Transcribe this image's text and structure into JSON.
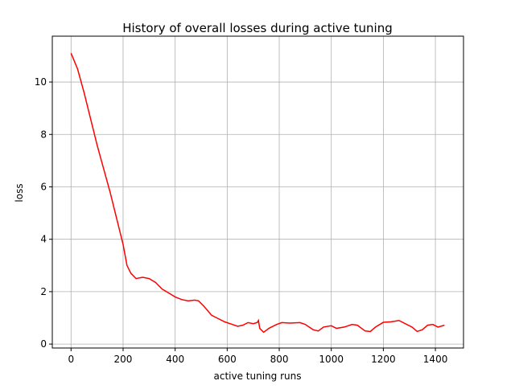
{
  "chart_data": {
    "type": "line",
    "title": "History of overall losses during active tuning",
    "x_label": "active tuning runs",
    "y_label": "loss",
    "x": [
      0,
      25,
      50,
      75,
      100,
      125,
      150,
      175,
      200,
      215,
      230,
      250,
      275,
      300,
      325,
      350,
      375,
      400,
      425,
      450,
      475,
      490,
      510,
      540,
      560,
      590,
      620,
      640,
      660,
      680,
      700,
      715,
      720,
      725,
      740,
      760,
      790,
      810,
      840,
      880,
      900,
      930,
      950,
      970,
      1000,
      1020,
      1050,
      1080,
      1100,
      1130,
      1150,
      1170,
      1200,
      1230,
      1260,
      1290,
      1310,
      1330,
      1350,
      1370,
      1390,
      1410,
      1435
    ],
    "series": [
      {
        "name": "loss",
        "color": "#ff0000",
        "values": [
          11.1,
          10.5,
          9.6,
          8.6,
          7.6,
          6.7,
          5.8,
          4.8,
          3.8,
          3.0,
          2.7,
          2.5,
          2.55,
          2.5,
          2.35,
          2.1,
          1.95,
          1.8,
          1.7,
          1.65,
          1.68,
          1.65,
          1.45,
          1.1,
          1.0,
          0.85,
          0.75,
          0.68,
          0.72,
          0.82,
          0.78,
          0.82,
          0.9,
          0.6,
          0.45,
          0.6,
          0.75,
          0.82,
          0.8,
          0.82,
          0.75,
          0.55,
          0.5,
          0.65,
          0.7,
          0.6,
          0.65,
          0.75,
          0.72,
          0.5,
          0.48,
          0.65,
          0.83,
          0.85,
          0.9,
          0.75,
          0.65,
          0.48,
          0.55,
          0.72,
          0.75,
          0.65,
          0.72
        ]
      }
    ],
    "xlim": [
      -72,
      1508
    ],
    "ylim": [
      -0.15,
      11.75
    ],
    "xticks": [
      0,
      200,
      400,
      600,
      800,
      1000,
      1200,
      1400
    ],
    "yticks": [
      0,
      2,
      4,
      6,
      8,
      10
    ],
    "grid": true
  }
}
